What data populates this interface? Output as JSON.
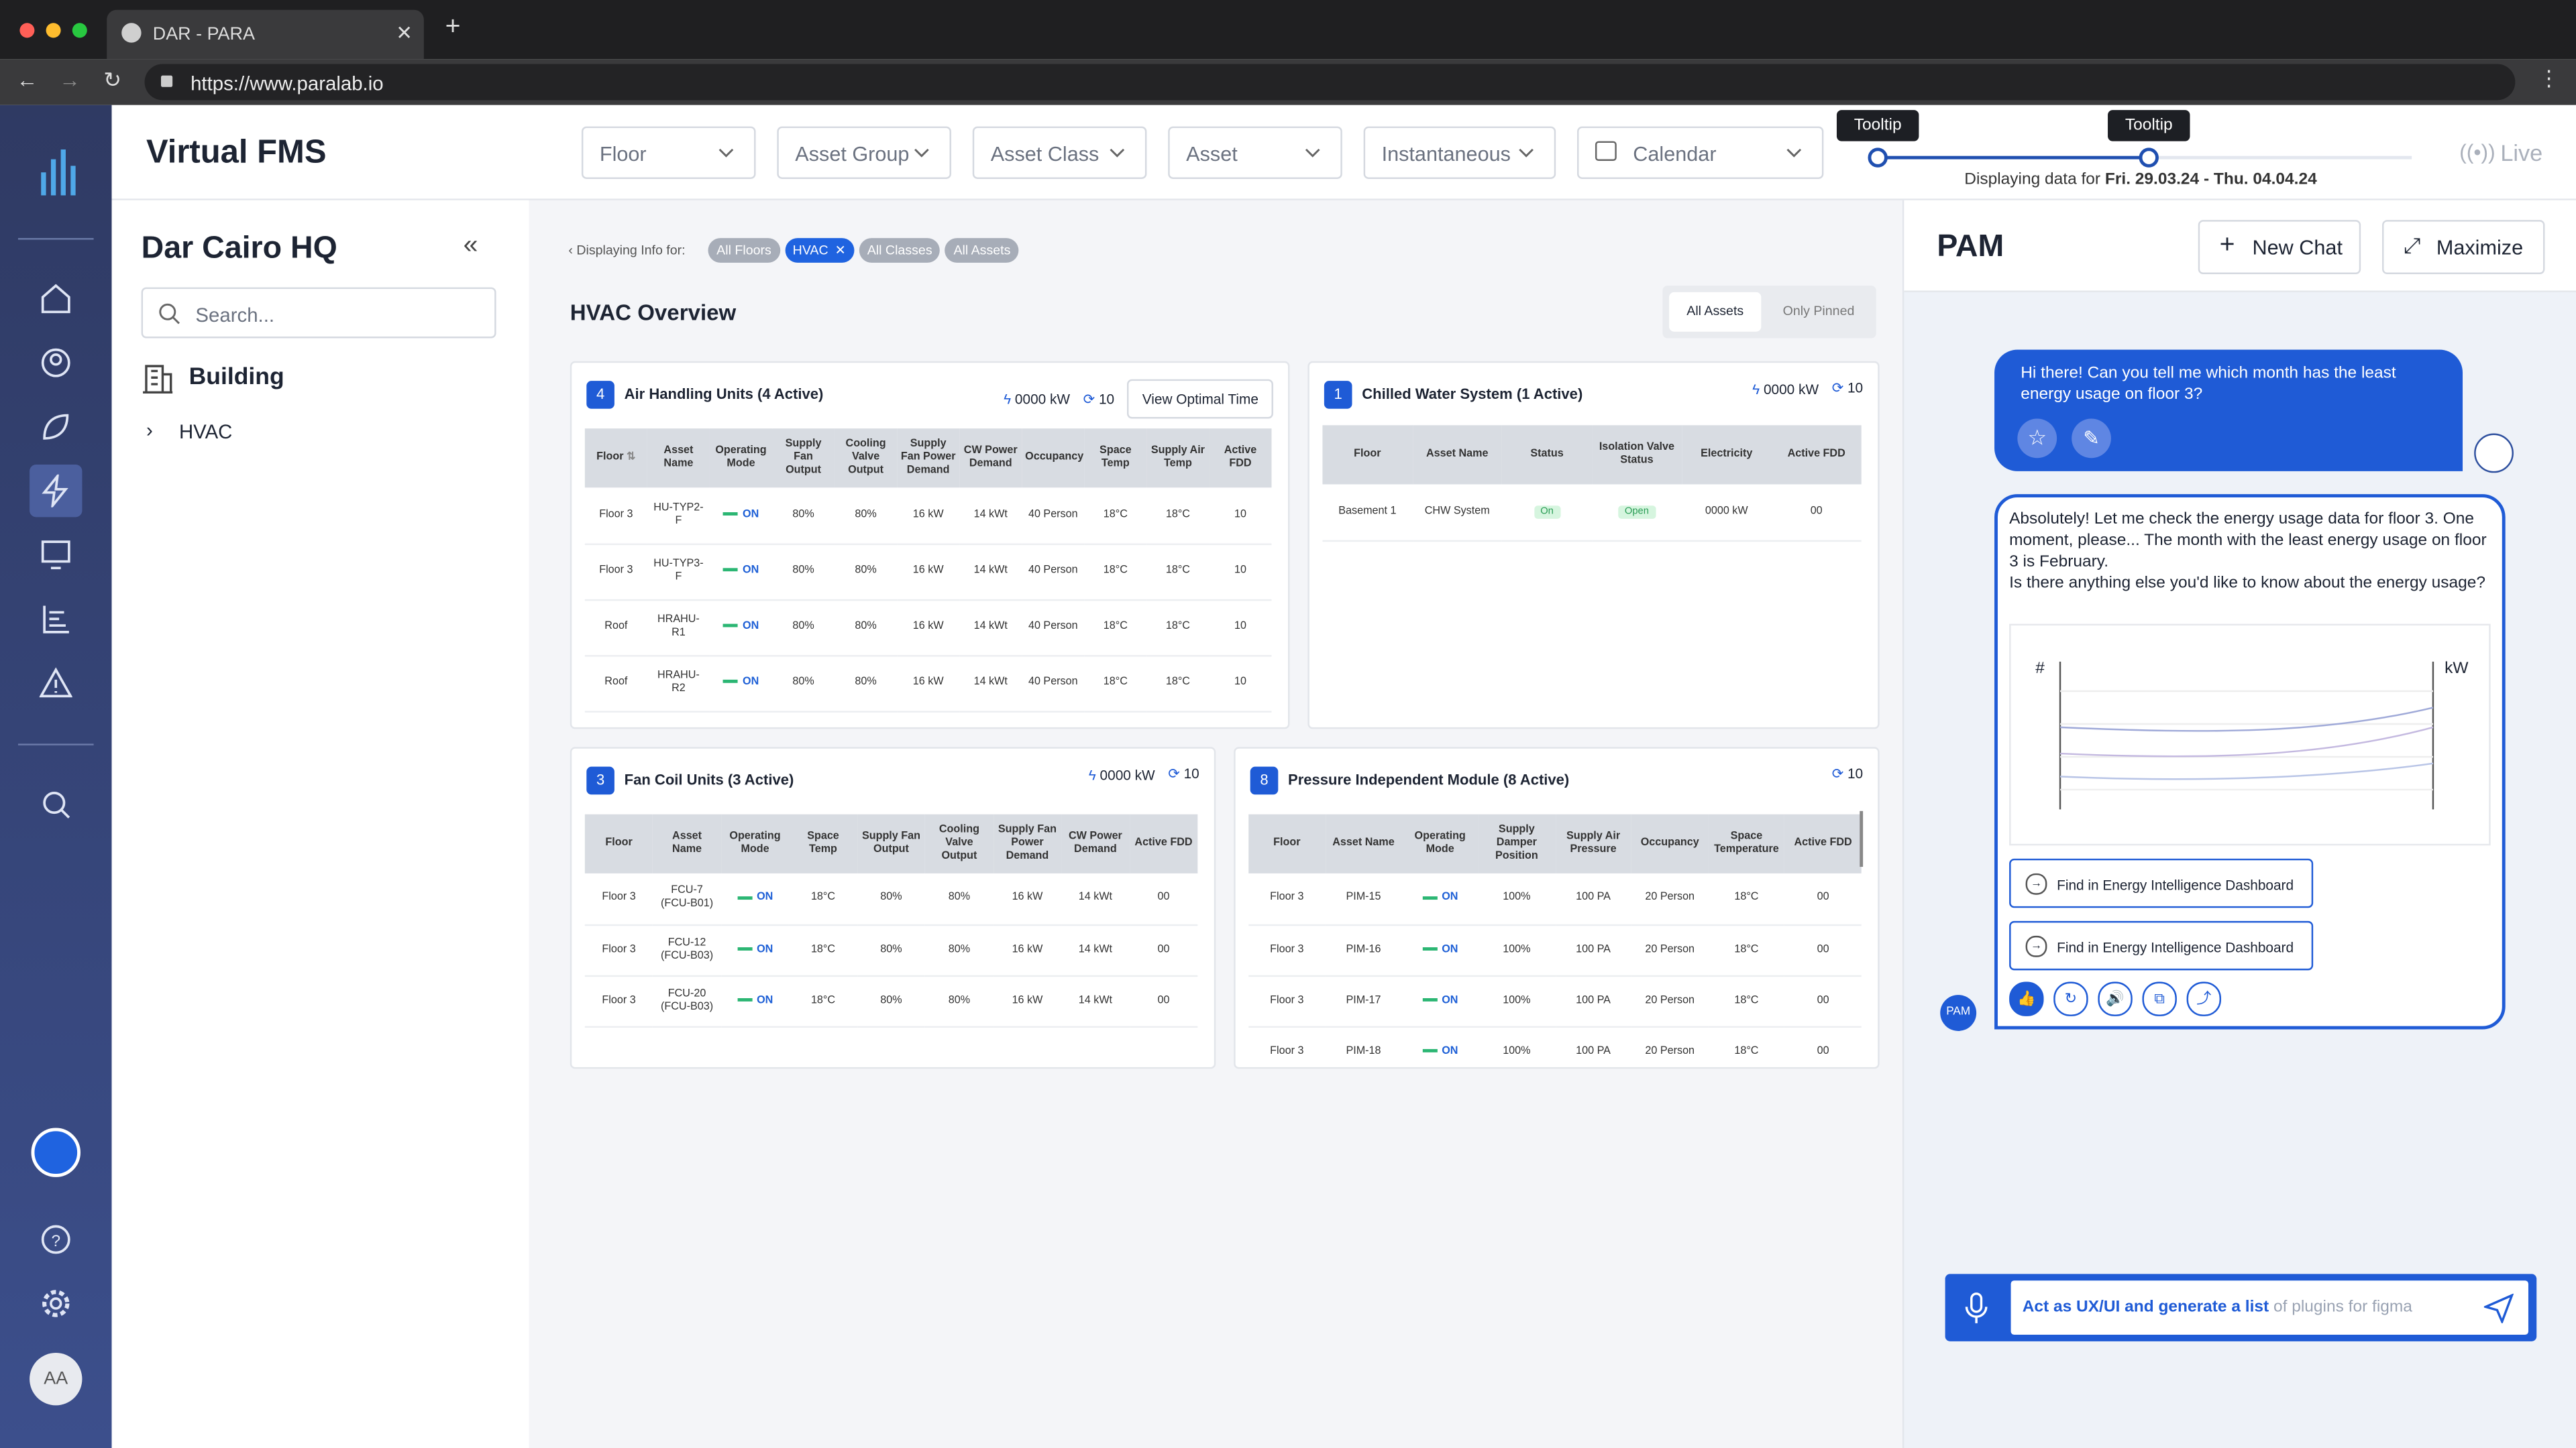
{
  "browser": {
    "tab_title": "DAR - PARA",
    "url": "https://www.paralab.io"
  },
  "header": {
    "title": "Virtual FMS",
    "filters": [
      "Floor",
      "Asset Group",
      "Asset Class",
      "Asset",
      "Instantaneous",
      "Calendar"
    ],
    "tooltips": [
      "Tooltip",
      "Tooltip"
    ],
    "range_prefix": "Displaying data for",
    "range": "Fri. 29.03.24 - Thu. 04.04.24",
    "live": "Live"
  },
  "sidebar": {
    "avatar": "AA"
  },
  "tree": {
    "title": "Dar Cairo HQ",
    "search_placeholder": "Search...",
    "root": "Building",
    "child": "HVAC"
  },
  "main": {
    "info_label": "Displaying Info for:",
    "chips": [
      "All Floors",
      "HVAC",
      "All Classes",
      "All Assets"
    ],
    "title": "HVAC Overview",
    "toggles": [
      "All Assets",
      "Only Pinned"
    ]
  },
  "panels": [
    {
      "count": "4",
      "title": "Air Handling Units (4 Active)",
      "power": "0000 kW",
      "fdd": "10",
      "button": "View Optimal Time",
      "columns": [
        "Floor",
        "Asset Name",
        "Operating Mode",
        "Supply Fan Output",
        "Cooling Valve Output",
        "Supply Fan Power Demand",
        "CW Power Demand",
        "Occupancy",
        "Space Temp",
        "Supply Air Temp",
        "Active FDD"
      ],
      "rows": [
        [
          "Floor 3",
          "HU-TYP2-F",
          "ON",
          "80%",
          "80%",
          "16 kW",
          "14 kWt",
          "40 Person",
          "18°C",
          "18°C",
          "10"
        ],
        [
          "Floor 3",
          "HU-TYP3-F",
          "ON",
          "80%",
          "80%",
          "16 kW",
          "14 kWt",
          "40 Person",
          "18°C",
          "18°C",
          "10"
        ],
        [
          "Roof",
          "HRAHU-R1",
          "ON",
          "80%",
          "80%",
          "16 kW",
          "14 kWt",
          "40 Person",
          "18°C",
          "18°C",
          "10"
        ],
        [
          "Roof",
          "HRAHU-R2",
          "ON",
          "80%",
          "80%",
          "16 kW",
          "14 kWt",
          "40 Person",
          "18°C",
          "18°C",
          "10"
        ]
      ]
    },
    {
      "count": "1",
      "title": "Chilled Water System (1 Active)",
      "power": "0000 kW",
      "fdd": "10",
      "columns": [
        "Floor",
        "Asset Name",
        "Status",
        "Isolation Valve Status",
        "Electricity",
        "Active FDD"
      ],
      "rows": [
        [
          "Basement 1",
          "CHW System",
          "On",
          "Open",
          "0000 kW",
          "00"
        ]
      ]
    },
    {
      "count": "3",
      "title": "Fan Coil Units (3 Active)",
      "power": "0000 kW",
      "fdd": "10",
      "columns": [
        "Floor",
        "Asset Name",
        "Operating Mode",
        "Space Temp",
        "Supply Fan Output",
        "Cooling Valve Output",
        "Supply Fan Power Demand",
        "CW Power Demand",
        "Active FDD"
      ],
      "rows": [
        [
          "Floor 3",
          "FCU-7 (FCU-B01)",
          "ON",
          "18°C",
          "80%",
          "80%",
          "16 kW",
          "14 kWt",
          "00"
        ],
        [
          "Floor 3",
          "FCU-12 (FCU-B03)",
          "ON",
          "18°C",
          "80%",
          "80%",
          "16 kW",
          "14 kWt",
          "00"
        ],
        [
          "Floor 3",
          "FCU-20 (FCU-B03)",
          "ON",
          "18°C",
          "80%",
          "80%",
          "16 kW",
          "14 kWt",
          "00"
        ]
      ]
    },
    {
      "count": "8",
      "title": "Pressure Independent Module (8 Active)",
      "fdd": "10",
      "columns": [
        "Floor",
        "Asset Name",
        "Operating Mode",
        "Supply Damper Position",
        "Supply Air Pressure",
        "Occupancy",
        "Space Temperature",
        "Active FDD"
      ],
      "rows": [
        [
          "Floor 3",
          "PIM-15",
          "ON",
          "100%",
          "100 PA",
          "20 Person",
          "18°C",
          "00"
        ],
        [
          "Floor 3",
          "PIM-16",
          "ON",
          "100%",
          "100 PA",
          "20 Person",
          "18°C",
          "00"
        ],
        [
          "Floor 3",
          "PIM-17",
          "ON",
          "100%",
          "100 PA",
          "20 Person",
          "18°C",
          "00"
        ],
        [
          "Floor 3",
          "PIM-18",
          "ON",
          "100%",
          "100 PA",
          "20 Person",
          "18°C",
          "00"
        ]
      ]
    }
  ],
  "chat": {
    "title": "PAM",
    "buttons": [
      "New Chat",
      "Maximize"
    ],
    "user_message": "Hi there! Can you tell me which month has the least energy usage on floor 3?",
    "reply": [
      "Absolutely! Let me check the energy usage data for floor 3. One moment, please... The month with the least energy usage on floor 3 is February.",
      "Is there anything else you'd like to know about the energy usage?"
    ],
    "chart_axes": [
      "#",
      "kW"
    ],
    "links": [
      "Find in Energy Intelligence Dashboard",
      "Find in Energy Intelligence Dashboard"
    ],
    "bot_name": "PAM",
    "input_text": "Act as UX/UI and generate a list",
    "input_placeholder": "of plugins for figma"
  }
}
